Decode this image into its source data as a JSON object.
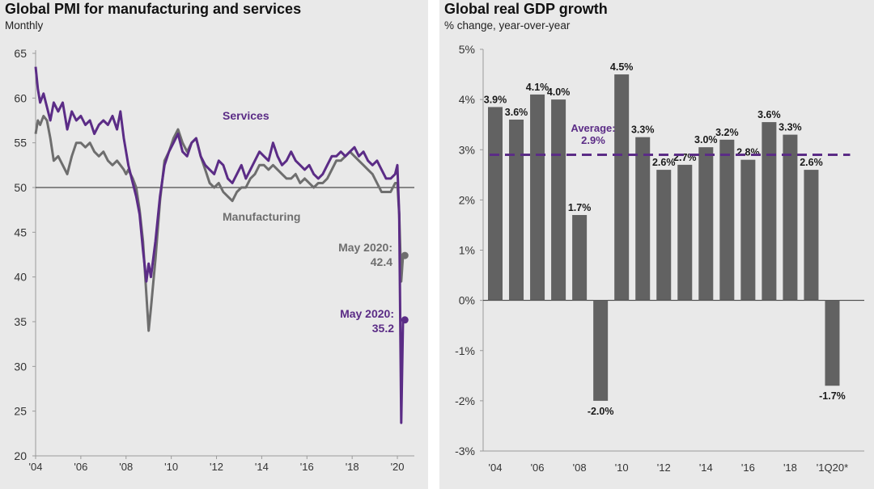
{
  "chart_data": [
    {
      "type": "line",
      "title": "Global PMI for manufacturing and services",
      "subtitle": "Monthly",
      "xlabel": "",
      "ylabel": "",
      "ylim": [
        20,
        65
      ],
      "xlim": [
        2004.0,
        2020.75
      ],
      "yticks": [
        20,
        25,
        30,
        35,
        40,
        45,
        50,
        55,
        60,
        65
      ],
      "xticks": [
        {
          "x": 2004,
          "label": "'04"
        },
        {
          "x": 2006,
          "label": "'06"
        },
        {
          "x": 2008,
          "label": "'08"
        },
        {
          "x": 2010,
          "label": "'10"
        },
        {
          "x": 2012,
          "label": "'12"
        },
        {
          "x": 2014,
          "label": "'14"
        },
        {
          "x": 2016,
          "label": "'16"
        },
        {
          "x": 2018,
          "label": "'18"
        },
        {
          "x": 2020,
          "label": "'20"
        }
      ],
      "reference_line": 50,
      "series": [
        {
          "name": "Services",
          "color": "#5b2c86",
          "x": [
            2004.0,
            2004.1,
            2004.2,
            2004.35,
            2004.5,
            2004.65,
            2004.8,
            2005.0,
            2005.2,
            2005.4,
            2005.6,
            2005.8,
            2006.0,
            2006.2,
            2006.4,
            2006.6,
            2006.8,
            2007.0,
            2007.2,
            2007.4,
            2007.6,
            2007.75,
            2007.9,
            2008.0,
            2008.1,
            2008.3,
            2008.45,
            2008.6,
            2008.75,
            2008.9,
            2009.0,
            2009.1,
            2009.3,
            2009.5,
            2009.7,
            2009.9,
            2010.1,
            2010.3,
            2010.5,
            2010.7,
            2010.9,
            2011.1,
            2011.3,
            2011.5,
            2011.7,
            2011.9,
            2012.1,
            2012.3,
            2012.5,
            2012.7,
            2012.9,
            2013.1,
            2013.3,
            2013.5,
            2013.7,
            2013.9,
            2014.1,
            2014.3,
            2014.5,
            2014.7,
            2014.9,
            2015.1,
            2015.3,
            2015.5,
            2015.7,
            2015.9,
            2016.1,
            2016.3,
            2016.5,
            2016.7,
            2016.9,
            2017.1,
            2017.3,
            2017.5,
            2017.7,
            2017.9,
            2018.1,
            2018.3,
            2018.5,
            2018.7,
            2018.9,
            2019.1,
            2019.3,
            2019.5,
            2019.7,
            2019.9,
            2020.0,
            2020.08,
            2020.17,
            2020.25,
            2020.33
          ],
          "values": [
            63.5,
            61,
            59.5,
            60.5,
            59,
            57.5,
            59.5,
            58.5,
            59.5,
            56.5,
            58.5,
            57.5,
            58,
            57,
            57.5,
            56,
            57,
            57.5,
            57,
            58,
            56.5,
            58.5,
            55.5,
            54,
            52.5,
            50.5,
            49,
            47,
            43,
            39.5,
            41.5,
            40,
            44,
            49,
            52.5,
            54,
            55,
            56,
            54,
            53.5,
            55,
            55.5,
            53.5,
            52.5,
            52,
            51.5,
            53,
            52.5,
            51,
            50.5,
            51.5,
            52.5,
            51,
            52,
            53,
            54,
            53.5,
            53,
            55,
            53.5,
            52.5,
            53,
            54,
            53,
            52.5,
            52,
            52.5,
            51.5,
            51,
            51.5,
            52.5,
            53.5,
            53.5,
            54,
            53.5,
            54,
            54.5,
            53.5,
            54,
            53,
            52.5,
            53,
            52,
            51,
            51,
            51.5,
            52.5,
            47,
            23.7,
            35.2,
            35.2
          ]
        },
        {
          "name": "Manufacturing",
          "color": "#6e6e6e",
          "x": [
            2004.0,
            2004.1,
            2004.2,
            2004.35,
            2004.5,
            2004.65,
            2004.8,
            2005.0,
            2005.2,
            2005.4,
            2005.6,
            2005.8,
            2006.0,
            2006.2,
            2006.4,
            2006.6,
            2006.8,
            2007.0,
            2007.2,
            2007.4,
            2007.6,
            2007.75,
            2007.9,
            2008.0,
            2008.1,
            2008.3,
            2008.45,
            2008.6,
            2008.75,
            2008.9,
            2009.0,
            2009.1,
            2009.3,
            2009.5,
            2009.7,
            2009.9,
            2010.1,
            2010.3,
            2010.5,
            2010.7,
            2010.9,
            2011.1,
            2011.3,
            2011.5,
            2011.7,
            2011.9,
            2012.1,
            2012.3,
            2012.5,
            2012.7,
            2012.9,
            2013.1,
            2013.3,
            2013.5,
            2013.7,
            2013.9,
            2014.1,
            2014.3,
            2014.5,
            2014.7,
            2014.9,
            2015.1,
            2015.3,
            2015.5,
            2015.7,
            2015.9,
            2016.1,
            2016.3,
            2016.5,
            2016.7,
            2016.9,
            2017.1,
            2017.3,
            2017.5,
            2017.7,
            2017.9,
            2018.1,
            2018.3,
            2018.5,
            2018.7,
            2018.9,
            2019.1,
            2019.3,
            2019.5,
            2019.7,
            2019.9,
            2020.0,
            2020.08,
            2020.17,
            2020.25,
            2020.33
          ],
          "values": [
            56,
            57.5,
            57,
            58,
            57.5,
            55.5,
            53,
            53.5,
            52.5,
            51.5,
            53.5,
            55,
            55,
            54.5,
            55,
            54,
            53.5,
            54,
            53,
            52.5,
            53,
            52.5,
            52,
            51.5,
            52,
            51,
            50,
            47.5,
            44,
            38,
            34,
            36.5,
            42,
            48.5,
            53,
            54,
            55.5,
            56.5,
            55,
            54,
            55,
            55.5,
            53.5,
            52,
            50.5,
            50,
            50.5,
            49.5,
            49,
            48.5,
            49.5,
            50,
            50,
            51,
            51.5,
            52.5,
            52.5,
            52,
            52.5,
            52,
            51.5,
            51,
            51,
            51.5,
            50.5,
            51,
            50.5,
            50,
            50.5,
            50.5,
            51,
            52,
            53,
            53,
            53.5,
            54,
            53.5,
            53,
            52.5,
            52,
            51.5,
            50.5,
            49.5,
            49.5,
            49.5,
            50.5,
            50.5,
            47,
            39.5,
            42.4,
            42.4
          ]
        }
      ],
      "annotations": [
        {
          "text": "Services",
          "color": "#5b2c86"
        },
        {
          "text": "Manufacturing",
          "color": "#6e6e6e"
        },
        {
          "lines": [
            "May 2020:",
            "42.4"
          ],
          "color": "#6e6e6e",
          "x": 2020.33,
          "y": 42.4
        },
        {
          "lines": [
            "May 2020:",
            "35.2"
          ],
          "color": "#5b2c86",
          "x": 2020.33,
          "y": 35.2
        }
      ]
    },
    {
      "type": "bar",
      "title": "Global real GDP growth",
      "subtitle": "% change, year-over-year",
      "xlabel": "",
      "ylabel": "",
      "ylim": [
        -3,
        5
      ],
      "yticks": [
        -3,
        -2,
        -1,
        0,
        1,
        2,
        3,
        4,
        5
      ],
      "ytick_labels": [
        "-3%",
        "-2%",
        "-1%",
        "0%",
        "1%",
        "2%",
        "3%",
        "4%",
        "5%"
      ],
      "categories": [
        "2004",
        "2005",
        "2006",
        "2007",
        "2008",
        "2009",
        "2010",
        "2011",
        "2012",
        "2013",
        "2014",
        "2015",
        "2016",
        "2017",
        "2018",
        "2019",
        "1Q20*"
      ],
      "xtick_labels": [
        "'04",
        "",
        "'06",
        "",
        "'08",
        "",
        "'10",
        "",
        "'12",
        "",
        "'14",
        "",
        "'16",
        "",
        "'18",
        "",
        "'1Q20*"
      ],
      "values": [
        3.85,
        3.6,
        4.1,
        4.0,
        1.7,
        -2.0,
        4.5,
        3.25,
        2.6,
        2.7,
        3.05,
        3.2,
        2.8,
        3.55,
        3.3,
        2.6,
        -1.7
      ],
      "value_labels": [
        "3.9%",
        "3.6%",
        "4.1%",
        "4.0%",
        "1.7%",
        "-2.0%",
        "4.5%",
        "3.3%",
        "2.6%",
        "2.7%",
        "3.0%",
        "3.2%",
        "2.8%",
        "3.6%",
        "3.3%",
        "2.6%",
        "-1.7%"
      ],
      "bar_color": "#626262",
      "average": {
        "value": 2.9,
        "lines": [
          "Average:",
          "2.9%"
        ],
        "color": "#5b2c86"
      }
    }
  ]
}
